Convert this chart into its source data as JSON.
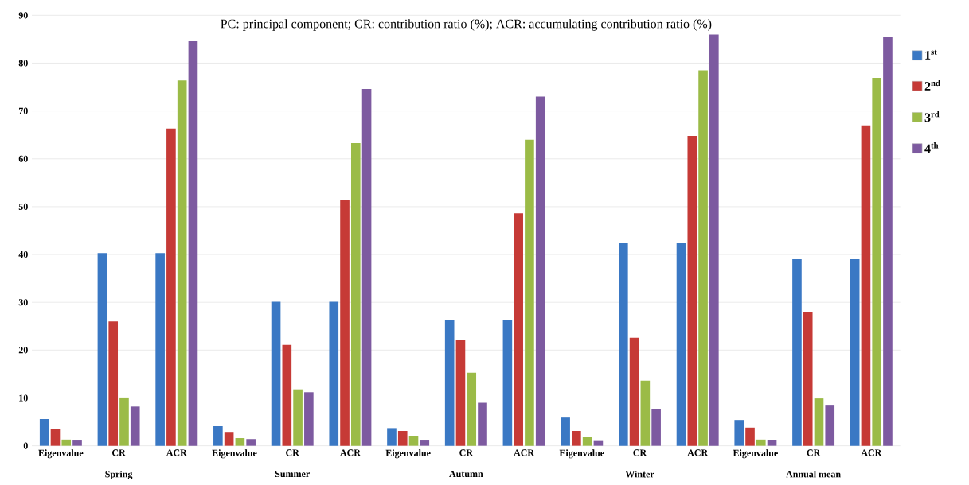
{
  "chart_data": {
    "type": "bar",
    "title": "PC: principal component; CR: contribution ratio (%); ACR: accumulating contribution ratio (%)",
    "categories": [
      "Eigenvalue",
      "CR",
      "ACR",
      "Eigenvalue",
      "CR",
      "ACR",
      "Eigenvalue",
      "CR",
      "ACR",
      "Eigenvalue",
      "CR",
      "ACR",
      "Eigenvalue",
      "CR",
      "ACR"
    ],
    "annotations": [
      "Spring",
      "Summer",
      "Autumn",
      "Winter",
      "Annual mean"
    ],
    "series": [
      {
        "name": "1$^{st}$",
        "color": "#3a78c4",
        "values": [
          5.6,
          40.3,
          40.3,
          4.1,
          30.1,
          30.1,
          3.7,
          26.3,
          26.3,
          5.9,
          42.4,
          42.4,
          5.4,
          39.0,
          39.0
        ]
      },
      {
        "name": "2$^{nd}$",
        "color": "#c63a36",
        "values": [
          3.5,
          26.0,
          66.3,
          2.9,
          21.1,
          51.3,
          3.1,
          22.1,
          48.6,
          3.1,
          22.6,
          64.8,
          3.8,
          27.9,
          67.0
        ]
      },
      {
        "name": "3$^{rd}$",
        "color": "#9bbb47",
        "values": [
          1.3,
          10.1,
          76.4,
          1.6,
          11.8,
          63.3,
          2.1,
          15.3,
          64.0,
          1.8,
          13.6,
          78.5,
          1.3,
          9.9,
          76.9
        ]
      },
      {
        "name": "4$^{th}$",
        "color": "#7d5aa0",
        "values": [
          1.1,
          8.2,
          84.6,
          1.4,
          11.2,
          74.6,
          1.1,
          9.0,
          73.0,
          1.0,
          7.6,
          86.0,
          1.2,
          8.4,
          85.4
        ]
      }
    ],
    "ylim": [
      0,
      90
    ],
    "yticks": [
      0,
      10,
      20,
      30,
      40,
      50,
      60,
      70,
      80,
      90
    ],
    "grid": "y",
    "legend": "right"
  }
}
